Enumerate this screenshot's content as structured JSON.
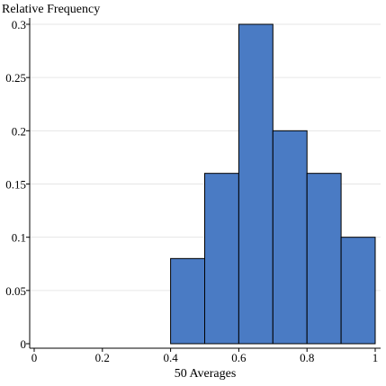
{
  "chart_data": {
    "type": "histogram",
    "title": "",
    "ylabel": "Relative Frequency",
    "xlabel": "50 Averages",
    "xlim": [
      0,
      1
    ],
    "ylim": [
      0,
      0.3
    ],
    "x_ticks": [
      0,
      0.2,
      0.4,
      0.6,
      0.8,
      1
    ],
    "x_tick_labels": [
      "0",
      "0.2",
      "0.4",
      "0.6",
      "0.8",
      "1"
    ],
    "y_ticks": [
      0,
      0.05,
      0.1,
      0.15,
      0.2,
      0.25,
      0.3
    ],
    "y_tick_labels": [
      "0",
      "0.05",
      "0.1",
      "0.15",
      "0.2",
      "0.25",
      "0.3"
    ],
    "grid": "horizontal",
    "bar_color": "#4a7bc4",
    "bins": [
      {
        "x0": 0.4,
        "x1": 0.5,
        "value": 0.08
      },
      {
        "x0": 0.5,
        "x1": 0.6,
        "value": 0.16
      },
      {
        "x0": 0.6,
        "x1": 0.7,
        "value": 0.3
      },
      {
        "x0": 0.7,
        "x1": 0.8,
        "value": 0.2
      },
      {
        "x0": 0.8,
        "x1": 0.9,
        "value": 0.16
      },
      {
        "x0": 0.9,
        "x1": 1.0,
        "value": 0.1
      }
    ]
  }
}
